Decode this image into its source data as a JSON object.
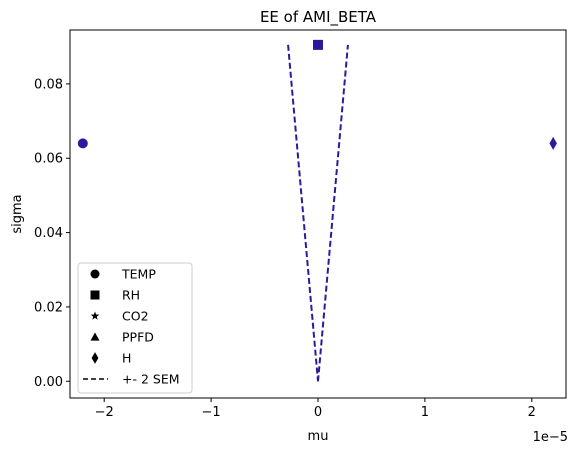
{
  "chart_data": {
    "type": "scatter",
    "title": "EE of AMI_BETA",
    "xlabel": "mu",
    "ylabel": "sigma",
    "x_offset_label": "1e−5",
    "x_scale": 1e-05,
    "xlim": [
      -2.32,
      2.32
    ],
    "ylim": [
      -0.0045,
      0.0945
    ],
    "x_ticks": [
      -2,
      -1,
      0,
      1,
      2
    ],
    "x_tick_labels": [
      "−2",
      "−1",
      "0",
      "1",
      "2"
    ],
    "y_ticks": [
      0.0,
      0.02,
      0.04,
      0.06,
      0.08
    ],
    "y_tick_labels": [
      "0.00",
      "0.02",
      "0.04",
      "0.06",
      "0.08"
    ],
    "grid": false,
    "legend_position": "lower-left",
    "marker_color": "#2b1a9c",
    "line_color": "#2b1a9c",
    "points": [
      {
        "name": "TEMP",
        "marker": "circle",
        "x": -2.2,
        "y": 0.064
      },
      {
        "name": "RH",
        "marker": "square",
        "x": 0.0,
        "y": 0.0905
      },
      {
        "name": "CO2",
        "marker": "star",
        "x": null,
        "y": null
      },
      {
        "name": "PPFD",
        "marker": "triangle",
        "x": null,
        "y": null
      },
      {
        "name": "H",
        "marker": "diamond",
        "x": 2.2,
        "y": 0.064
      }
    ],
    "sem_line": {
      "name": "+- 2 SEM",
      "style": "dashed",
      "left": [
        [
          -0.28,
          0.0905
        ],
        [
          0.0,
          0.0
        ]
      ],
      "right": [
        [
          0.0,
          0.0
        ],
        [
          0.28,
          0.0905
        ]
      ]
    },
    "legend": [
      {
        "label": "TEMP",
        "marker": "circle"
      },
      {
        "label": "RH",
        "marker": "square"
      },
      {
        "label": "CO2",
        "marker": "star"
      },
      {
        "label": "PPFD",
        "marker": "triangle"
      },
      {
        "label": "H",
        "marker": "diamond"
      },
      {
        "label": "+- 2 SEM",
        "marker": "dashed-line"
      }
    ]
  }
}
